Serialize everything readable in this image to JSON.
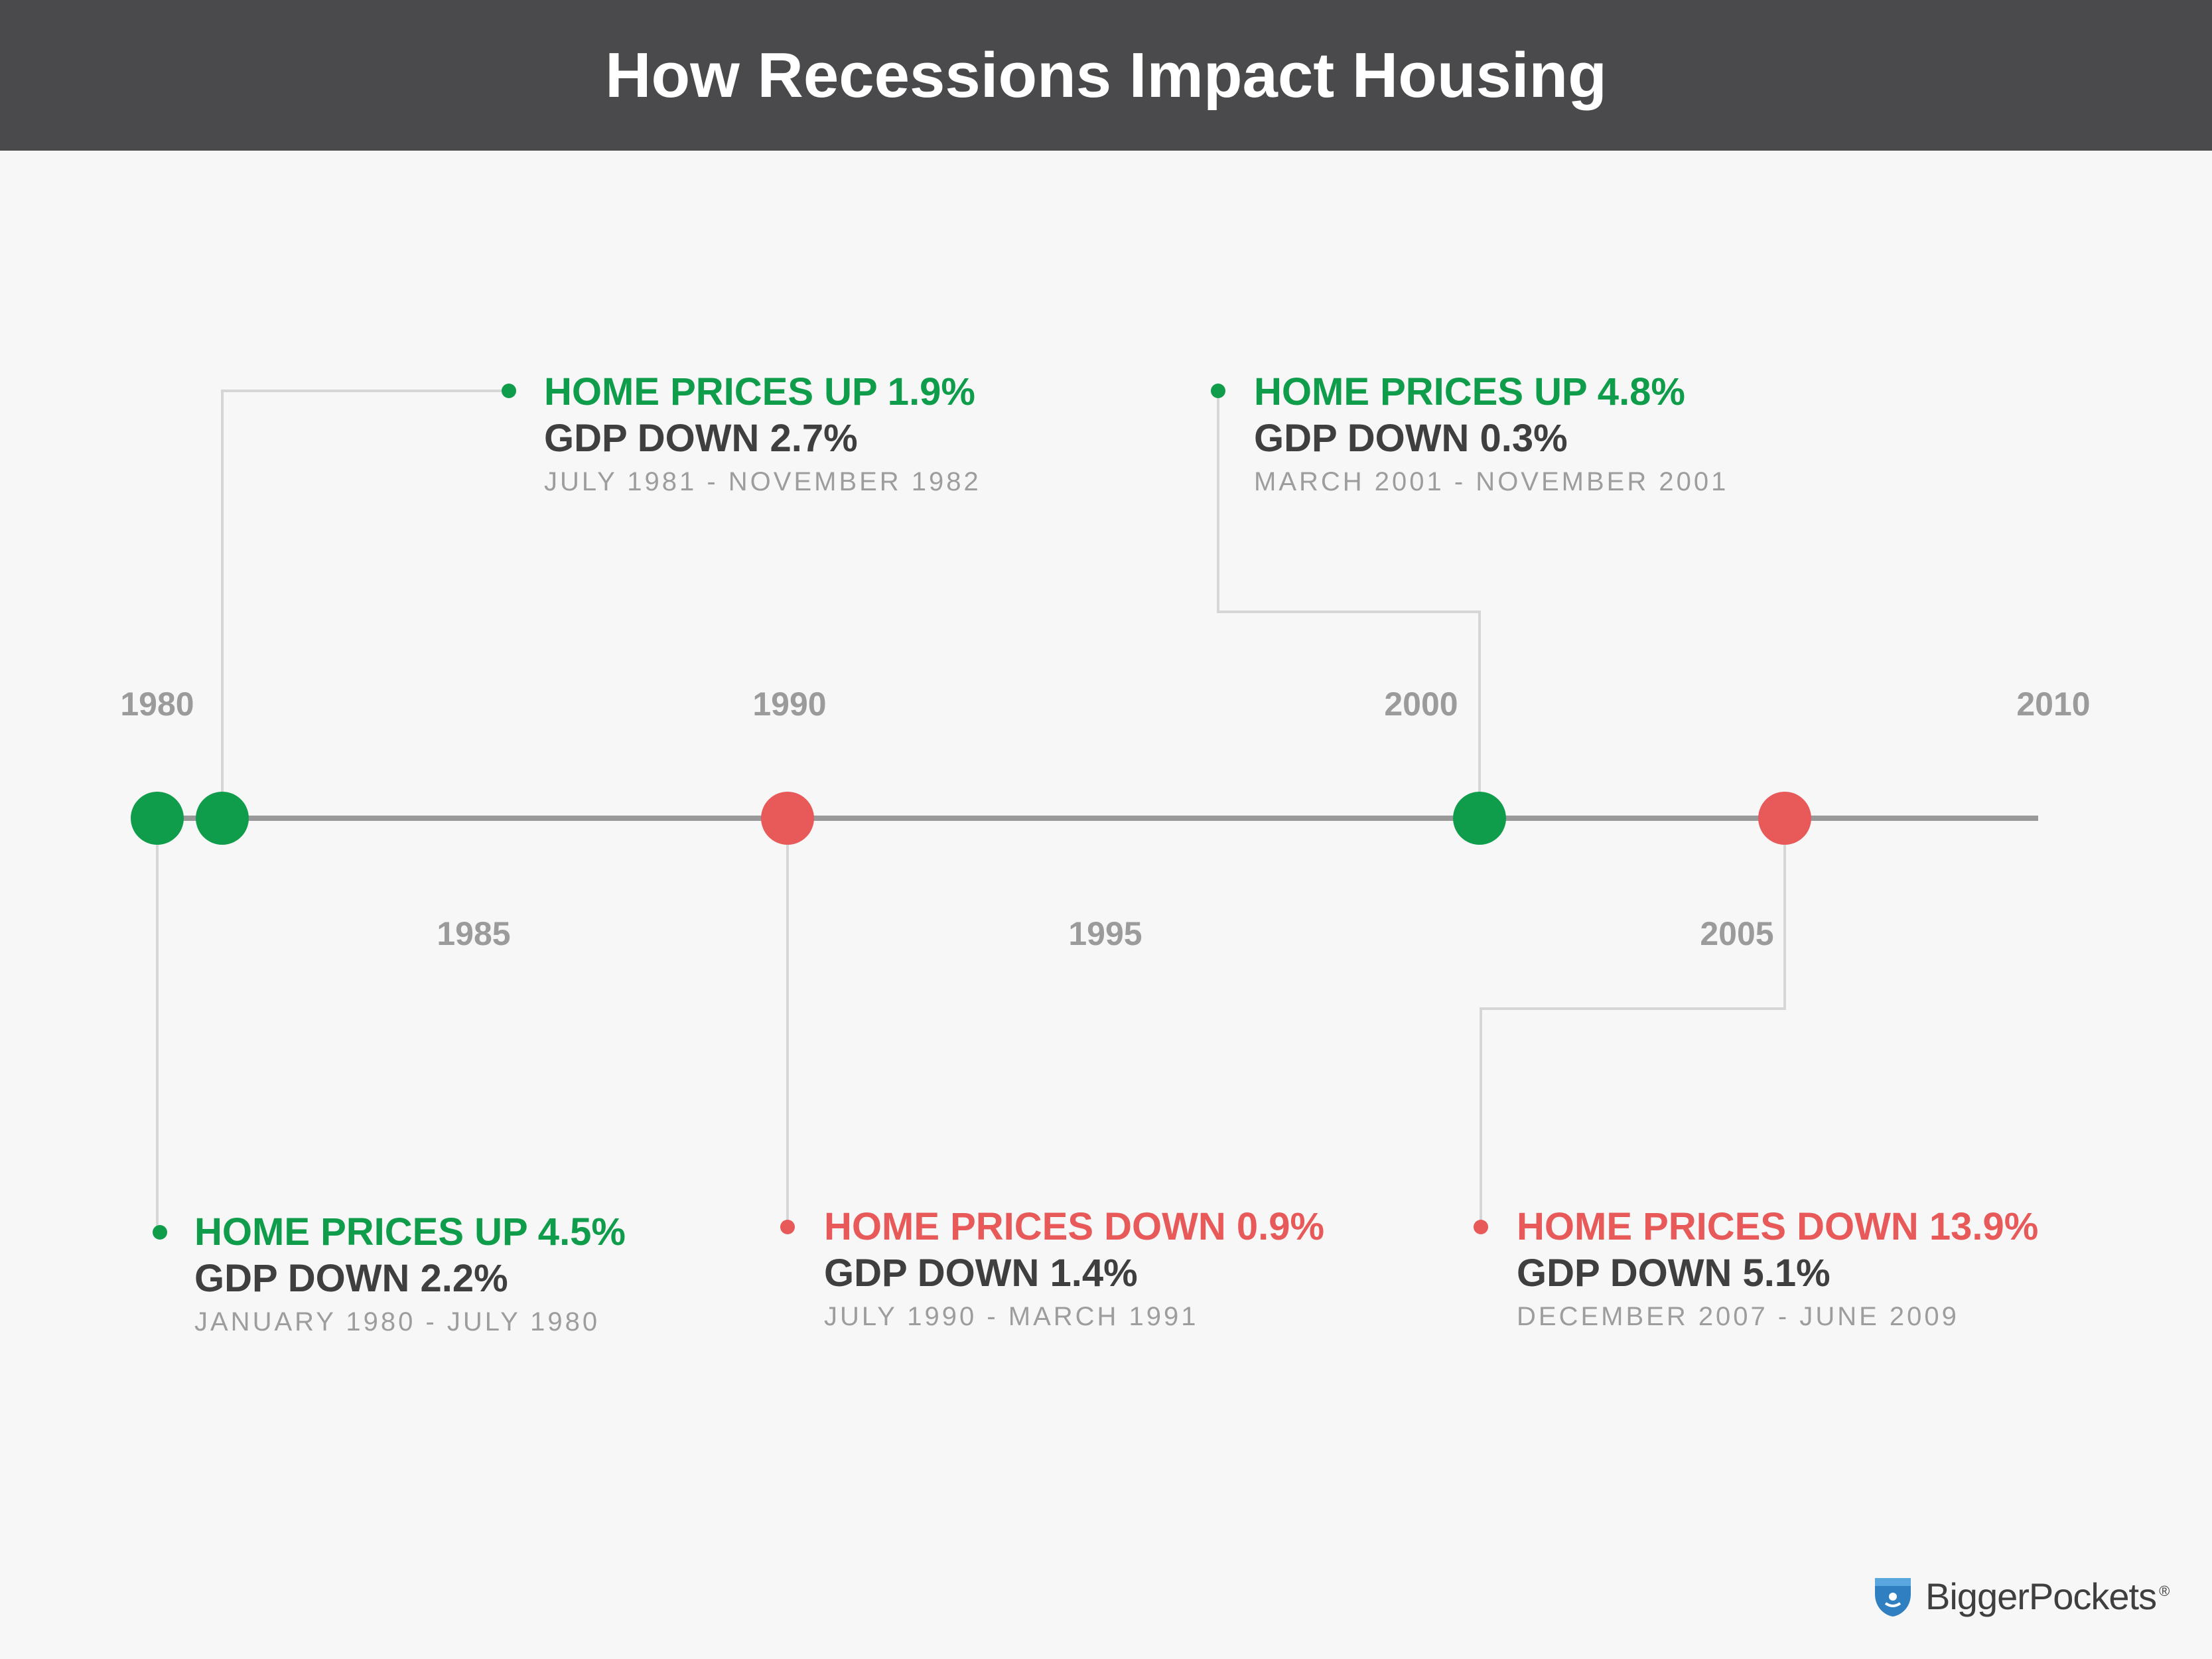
{
  "title": "How Recessions Impact Housing",
  "colors": {
    "up": "#0f9d4c",
    "down": "#e85a5a",
    "axis": "#999999",
    "connector": "#d6d6d6",
    "header": "#4a4a4c"
  },
  "years_top": [
    "1980",
    "1990",
    "2000",
    "2010"
  ],
  "years_bottom": [
    "1985",
    "1995",
    "2005"
  ],
  "recessions": [
    {
      "headline": "HOME PRICES UP 4.5%",
      "gdp": "GDP DOWN 2.2%",
      "dates": "JANUARY 1980 - JULY 1980",
      "trend": "up"
    },
    {
      "headline": "HOME PRICES UP 1.9%",
      "gdp": "GDP DOWN 2.7%",
      "dates": "JULY 1981 - NOVEMBER 1982",
      "trend": "up"
    },
    {
      "headline": "HOME PRICES DOWN 0.9%",
      "gdp": "GDP DOWN 1.4%",
      "dates": "JULY 1990 - MARCH 1991",
      "trend": "down"
    },
    {
      "headline": "HOME PRICES UP 4.8%",
      "gdp": "GDP DOWN 0.3%",
      "dates": "MARCH 2001 - NOVEMBER 2001",
      "trend": "up"
    },
    {
      "headline": "HOME PRICES DOWN 13.9%",
      "gdp": "GDP DOWN 5.1%",
      "dates": "DECEMBER 2007 - JUNE 2009",
      "trend": "down"
    }
  ],
  "logo": {
    "icon": "pocket-icon",
    "brand": "BiggerPockets",
    "mark": "®"
  }
}
